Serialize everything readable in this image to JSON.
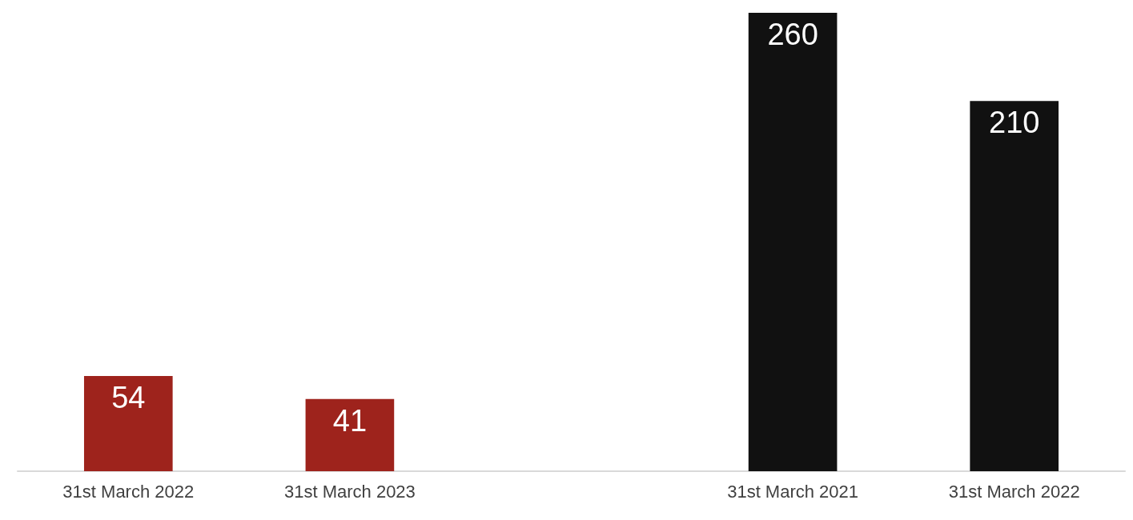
{
  "chart_data": {
    "type": "bar",
    "categories": [
      "31st March 2022",
      "31st March 2023",
      null,
      "31st March 2021",
      "31st March 2022"
    ],
    "values": [
      54,
      41,
      null,
      260,
      210
    ],
    "colors": [
      "#9e231c",
      "#9e231c",
      null,
      "#111111",
      "#111111"
    ],
    "data_labels": true
  }
}
